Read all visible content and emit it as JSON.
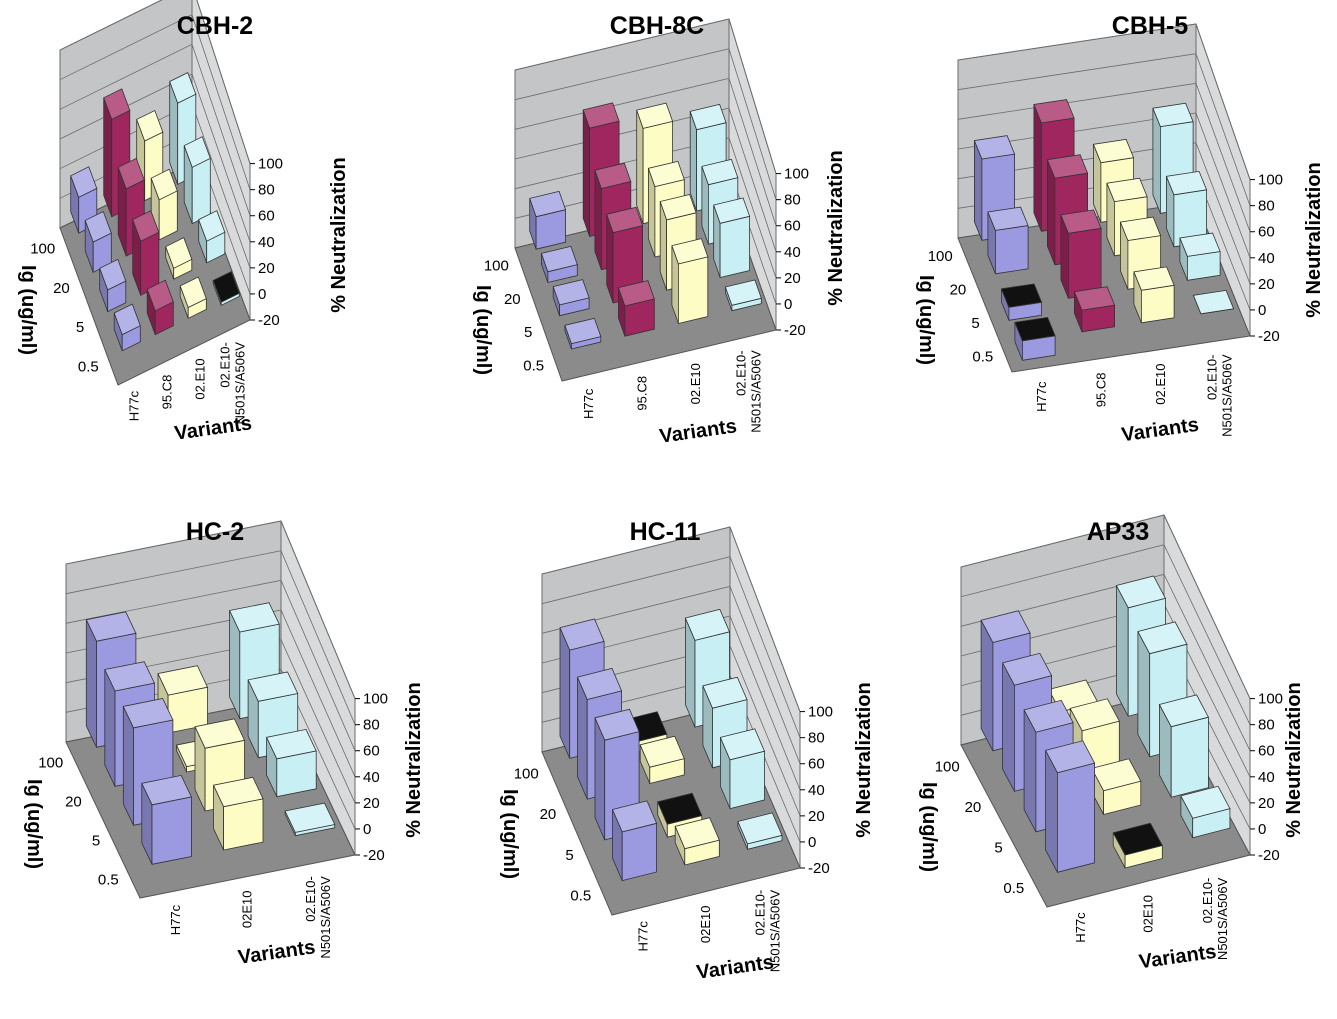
{
  "chart_data": [
    {
      "type": "bar3d",
      "title": "CBH-2",
      "xlabel": "Variants",
      "ylabel": "Ig (ug/ml)",
      "zlabel": "% Neutralization",
      "zlim": [
        -20,
        100
      ],
      "zticks": [
        "100",
        "80",
        "60",
        "40",
        "20",
        "0",
        "-20"
      ],
      "depth_categories": [
        "100",
        "20",
        "5",
        "0.5"
      ],
      "categories": [
        "H77c",
        "95.C8",
        "02.E10",
        "02.E10-\nN501S/A506V"
      ],
      "series": [
        {
          "depth": "100",
          "values": [
            33,
            90,
            55,
            75
          ]
        },
        {
          "depth": "20",
          "values": [
            28,
            62,
            37,
            52
          ]
        },
        {
          "depth": "5",
          "values": [
            20,
            50,
            10,
            20
          ]
        },
        {
          "depth": "0.5",
          "values": [
            15,
            22,
            10,
            -3
          ]
        }
      ],
      "colors": [
        "#9b99e0",
        "#a0265f",
        "#fcfcc4",
        "#c8f0f4"
      ],
      "negative_color": "#111111"
    },
    {
      "type": "bar3d",
      "title": "CBH-8C",
      "xlabel": "Variants",
      "ylabel": "Ig (ug/ml)",
      "zlabel": "% Neutralization",
      "zlim": [
        -20,
        100
      ],
      "zticks": [
        "100",
        "80",
        "60",
        "40",
        "20",
        "0",
        "-20"
      ],
      "depth_categories": [
        "100",
        "20",
        "5",
        "0.5"
      ],
      "categories": [
        "H77c",
        "95.C8",
        "02.E10",
        "02.E10-\nN501S/A506V"
      ],
      "series": [
        {
          "depth": "100",
          "values": [
            30,
            100,
            88,
            75
          ]
        },
        {
          "depth": "20",
          "values": [
            10,
            75,
            65,
            55
          ]
        },
        {
          "depth": "5",
          "values": [
            10,
            65,
            65,
            50
          ]
        },
        {
          "depth": "0.5",
          "values": [
            5,
            28,
            55,
            5
          ]
        }
      ],
      "colors": [
        "#9b99e0",
        "#a0265f",
        "#fcfcc4",
        "#c8f0f4"
      ],
      "negative_color": "#111111"
    },
    {
      "type": "bar3d",
      "title": "CBH-5",
      "xlabel": "Variants",
      "ylabel": "Ig (ug/ml)",
      "zlabel": "% Neutralization",
      "zlim": [
        -20,
        100
      ],
      "zticks": [
        "100",
        "80",
        "60",
        "40",
        "20",
        "0",
        "-20"
      ],
      "depth_categories": [
        "100",
        "20",
        "5",
        "0.5"
      ],
      "categories": [
        "H77c",
        "95.C8",
        "02.E10",
        "02.E10-\nN501S/A506V"
      ],
      "series": [
        {
          "depth": "100",
          "values": [
            75,
            100,
            55,
            80
          ]
        },
        {
          "depth": "20",
          "values": [
            40,
            80,
            50,
            48
          ]
        },
        {
          "depth": "5",
          "values": [
            -12,
            60,
            45,
            22
          ]
        },
        {
          "depth": "0.5",
          "values": [
            -18,
            20,
            30,
            0
          ]
        }
      ],
      "colors": [
        "#9b99e0",
        "#a0265f",
        "#fcfcc4",
        "#c8f0f4"
      ],
      "negative_color": "#111111"
    },
    {
      "type": "bar3d",
      "title": "HC-2",
      "xlabel": "Variants",
      "ylabel": "Ig (ug/ml)",
      "zlabel": "% Neutralization",
      "zlim": [
        -20,
        100
      ],
      "zticks": [
        "100",
        "80",
        "60",
        "40",
        "20",
        "0",
        "-20"
      ],
      "depth_categories": [
        "100",
        "20",
        "5",
        "0.5"
      ],
      "categories": [
        "H77c",
        "02E10",
        "02.E10-\nN501S/A506V"
      ],
      "series": [
        {
          "depth": "100",
          "values": [
            98,
            35,
            80
          ]
        },
        {
          "depth": "20",
          "values": [
            88,
            5,
            52
          ]
        },
        {
          "depth": "5",
          "values": [
            90,
            58,
            35
          ]
        },
        {
          "depth": "0.5",
          "values": [
            55,
            40,
            3
          ]
        }
      ],
      "colors": [
        "#9b99e0",
        "#fcfcc4",
        "#c8f0f4"
      ],
      "negative_color": "#111111"
    },
    {
      "type": "bar3d",
      "title": "HC-11",
      "xlabel": "Variants",
      "ylabel": "Ig (ug/ml)",
      "zlabel": "% Neutralization",
      "zlim": [
        -20,
        100
      ],
      "zticks": [
        "100",
        "80",
        "60",
        "40",
        "20",
        "0",
        "-20"
      ],
      "depth_categories": [
        "100",
        "20",
        "5",
        "0.5"
      ],
      "categories": [
        "H77c",
        "02E10",
        "02.E10-\nN501S/A506V"
      ],
      "series": [
        {
          "depth": "100",
          "values": [
            100,
            -10,
            80
          ]
        },
        {
          "depth": "20",
          "values": [
            92,
            15,
            55
          ]
        },
        {
          "depth": "5",
          "values": [
            92,
            -12,
            45
          ]
        },
        {
          "depth": "0.5",
          "values": [
            45,
            15,
            5
          ]
        }
      ],
      "colors": [
        "#9b99e0",
        "#fcfcc4",
        "#c8f0f4"
      ],
      "negative_color": "#111111"
    },
    {
      "type": "bar3d",
      "title": "AP33",
      "xlabel": "Variants",
      "ylabel": "Ig (ug/ml)",
      "zlabel": "% Neutralization",
      "zlim": [
        -20,
        100
      ],
      "zticks": [
        "100",
        "80",
        "60",
        "40",
        "20",
        "0",
        "-20"
      ],
      "depth_categories": [
        "100",
        "20",
        "5",
        "0.5"
      ],
      "categories": [
        "H77c",
        "02E10",
        "02.E10-\nN501S/A506V"
      ],
      "series": [
        {
          "depth": "100",
          "values": [
            100,
            20,
            100
          ]
        },
        {
          "depth": "20",
          "values": [
            98,
            40,
            95
          ]
        },
        {
          "depth": "5",
          "values": [
            92,
            22,
            65
          ]
        },
        {
          "depth": "0.5",
          "values": [
            92,
            -12,
            18
          ]
        }
      ],
      "colors": [
        "#9b99e0",
        "#fcfcc4",
        "#c8f0f4"
      ],
      "negative_color": "#111111"
    }
  ]
}
